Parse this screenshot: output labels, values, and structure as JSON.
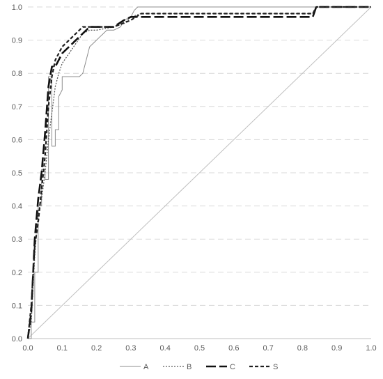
{
  "chart_data": {
    "type": "line",
    "title": "",
    "xlabel": "",
    "ylabel": "",
    "xlim": [
      0,
      1
    ],
    "ylim": [
      0,
      1
    ],
    "x_ticks": [
      "0.0",
      "0.1",
      "0.2",
      "0.3",
      "0.4",
      "0.5",
      "0.6",
      "0.7",
      "0.8",
      "0.9",
      "1.0"
    ],
    "y_ticks": [
      "0.0",
      "0.1",
      "0.2",
      "0.3",
      "0.4",
      "0.5",
      "0.6",
      "0.7",
      "0.8",
      "0.9",
      "1.0"
    ],
    "grid": "horizontal-dashed",
    "legend_position": "bottom",
    "reference_line": {
      "x": [
        0,
        1
      ],
      "y": [
        0,
        1
      ],
      "color": "#bfbfbf"
    },
    "series": [
      {
        "name": "A",
        "color": "#8c8c8c",
        "style": "solid-thin",
        "x": [
          0,
          0.01,
          0.01,
          0.02,
          0.02,
          0.03,
          0.03,
          0.04,
          0.04,
          0.05,
          0.05,
          0.06,
          0.06,
          0.07,
          0.07,
          0.08,
          0.08,
          0.09,
          0.09,
          0.1,
          0.1,
          0.15,
          0.16,
          0.17,
          0.18,
          0.19,
          0.2,
          0.21,
          0.22,
          0.23,
          0.25,
          0.27,
          0.28,
          0.3,
          0.31,
          0.32,
          1.0
        ],
        "y": [
          0,
          0,
          0.05,
          0.05,
          0.2,
          0.2,
          0.4,
          0.4,
          0.51,
          0.51,
          0.48,
          0.48,
          0.79,
          0.79,
          0.58,
          0.58,
          0.63,
          0.63,
          0.73,
          0.75,
          0.79,
          0.79,
          0.8,
          0.84,
          0.88,
          0.89,
          0.9,
          0.91,
          0.92,
          0.93,
          0.93,
          0.94,
          0.96,
          0.97,
          0.99,
          1.0,
          1.0
        ]
      },
      {
        "name": "B",
        "color": "#595959",
        "style": "dotted",
        "x": [
          0,
          0.01,
          0.02,
          0.03,
          0.04,
          0.05,
          0.06,
          0.07,
          0.08,
          0.09,
          0.1,
          0.12,
          0.14,
          0.16,
          0.18,
          0.2,
          0.25,
          0.28,
          0.3,
          0.33,
          0.5,
          0.83,
          0.84,
          1.0
        ],
        "y": [
          0,
          0.05,
          0.25,
          0.38,
          0.42,
          0.5,
          0.6,
          0.68,
          0.76,
          0.8,
          0.83,
          0.86,
          0.89,
          0.92,
          0.93,
          0.93,
          0.94,
          0.95,
          0.97,
          0.98,
          0.98,
          0.98,
          1.0,
          1.0
        ]
      },
      {
        "name": "C",
        "color": "#111111",
        "style": "long-dash",
        "x": [
          0,
          0.01,
          0.02,
          0.03,
          0.04,
          0.05,
          0.06,
          0.07,
          0.08,
          0.1,
          0.12,
          0.14,
          0.16,
          0.18,
          0.2,
          0.25,
          0.28,
          0.3,
          0.35,
          0.5,
          0.82,
          0.83,
          0.84,
          1.0
        ],
        "y": [
          0,
          0.08,
          0.3,
          0.42,
          0.5,
          0.62,
          0.76,
          0.82,
          0.82,
          0.86,
          0.88,
          0.9,
          0.92,
          0.94,
          0.94,
          0.94,
          0.96,
          0.97,
          0.97,
          0.97,
          0.97,
          0.97,
          1.0,
          1.0
        ]
      },
      {
        "name": "S",
        "color": "#1f1f1f",
        "style": "short-dash",
        "x": [
          0,
          0.01,
          0.02,
          0.03,
          0.04,
          0.05,
          0.06,
          0.07,
          0.08,
          0.1,
          0.12,
          0.14,
          0.16,
          0.18,
          0.2,
          0.25,
          0.3,
          0.33,
          0.5,
          0.83,
          0.84,
          1.0
        ],
        "y": [
          0,
          0.1,
          0.28,
          0.35,
          0.45,
          0.55,
          0.7,
          0.79,
          0.84,
          0.88,
          0.9,
          0.92,
          0.94,
          0.94,
          0.94,
          0.94,
          0.96,
          0.98,
          0.98,
          0.98,
          1.0,
          1.0
        ]
      }
    ]
  }
}
